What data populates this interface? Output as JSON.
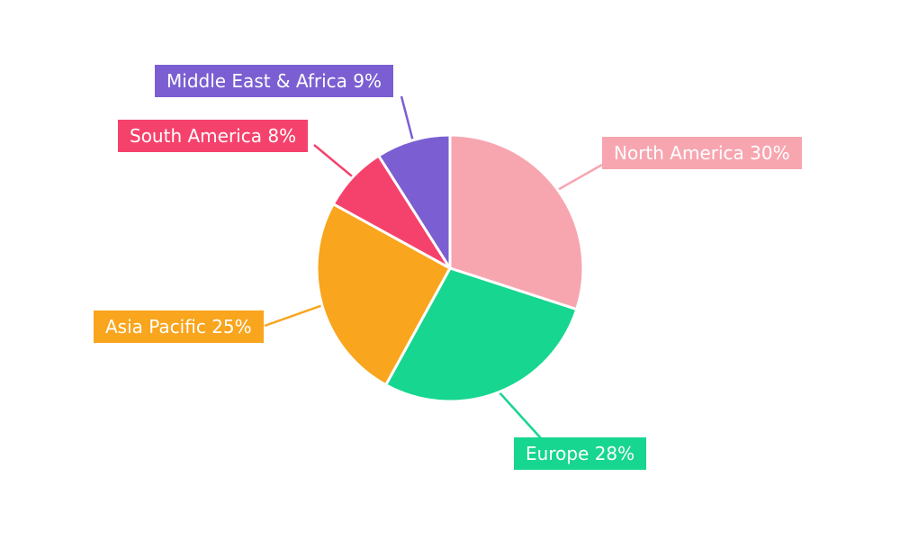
{
  "chart_data": {
    "type": "pie",
    "title": "",
    "legend_position": "outside-callouts",
    "background": "#FFFFFF",
    "label_text_color": "#FFFFFF",
    "slices": [
      {
        "name": "North America",
        "value": 30,
        "label_text": "North America 30%",
        "color": "#F7A6B0"
      },
      {
        "name": "Europe",
        "value": 28,
        "label_text": "Europe 28%",
        "color": "#17D690"
      },
      {
        "name": "Asia Pacific",
        "value": 25,
        "label_text": "Asia Pacific 25%",
        "color": "#F9A51D"
      },
      {
        "name": "South America",
        "value": 8,
        "label_text": "South America 8%",
        "color": "#F5426C"
      },
      {
        "name": "Middle East & Africa",
        "value": 9,
        "label_text": "Middle East & Africa 9%",
        "color": "#7B5FD2"
      }
    ]
  }
}
